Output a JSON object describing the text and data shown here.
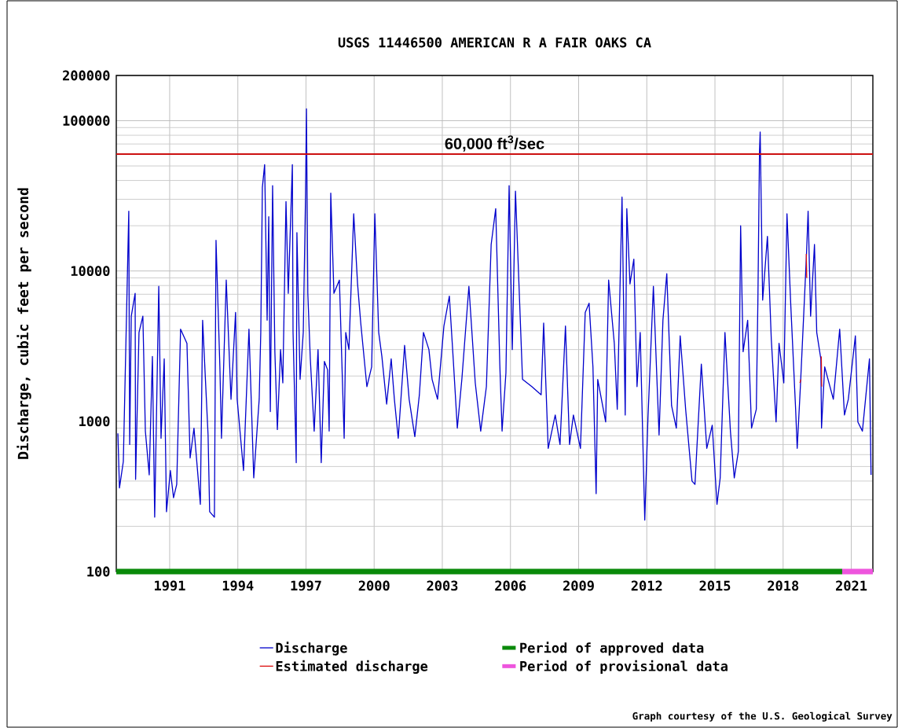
{
  "chart_data": {
    "type": "line",
    "title": "USGS 11446500 AMERICAN R A FAIR OAKS CA",
    "ylabel": "Discharge, cubic feet per second",
    "log": "y",
    "grid": true,
    "legend": "bottom",
    "marker": "none",
    "line_style": "solid",
    "xlim": [
      1988.65,
      2021.95
    ],
    "xticks": [
      1991,
      1994,
      1997,
      2000,
      2003,
      2006,
      2009,
      2012,
      2015,
      2018,
      2021
    ],
    "ylim": [
      100,
      200000
    ],
    "yticks": [
      100,
      1000,
      10000,
      100000,
      200000
    ],
    "series": [
      {
        "name": "Discharge",
        "color": "#0000cc",
        "x": [
          1988.72,
          1988.79,
          1988.96,
          1989.2,
          1989.24,
          1989.31,
          1989.48,
          1989.5,
          1989.65,
          1989.82,
          1989.93,
          1990.1,
          1990.24,
          1990.34,
          1990.52,
          1990.62,
          1990.76,
          1990.86,
          1991.03,
          1991.17,
          1991.31,
          1991.48,
          1991.76,
          1991.9,
          1992.07,
          1992.35,
          1992.45,
          1992.69,
          1992.76,
          1992.97,
          1993.04,
          1993.21,
          1993.28,
          1993.49,
          1993.7,
          1993.9,
          1993.97,
          1994.25,
          1994.49,
          1994.7,
          1994.94,
          1995.01,
          1995.08,
          1995.18,
          1995.29,
          1995.36,
          1995.43,
          1995.53,
          1995.63,
          1995.74,
          1995.88,
          1995.98,
          1996.12,
          1996.22,
          1996.4,
          1996.43,
          1996.57,
          1996.6,
          1996.74,
          1996.88,
          1996.98,
          1997.02,
          1997.08,
          1997.19,
          1997.36,
          1997.53,
          1997.67,
          1997.81,
          1997.95,
          1998.02,
          1998.09,
          1998.23,
          1998.47,
          1998.68,
          1998.75,
          1998.89,
          1999.1,
          1999.27,
          1999.41,
          1999.68,
          1999.89,
          2000.03,
          2000.2,
          2000.34,
          2000.55,
          2000.75,
          2000.89,
          2001.06,
          2001.34,
          2001.54,
          2001.79,
          2001.99,
          2002.17,
          2002.41,
          2002.55,
          2002.79,
          2003.07,
          2003.31,
          2003.48,
          2003.66,
          2003.86,
          2004.17,
          2004.45,
          2004.69,
          2004.94,
          2005.15,
          2005.35,
          2005.53,
          2005.63,
          2005.8,
          2005.94,
          2006.08,
          2006.22,
          2006.53,
          2006.94,
          2007.35,
          2007.46,
          2007.66,
          2007.97,
          2008.18,
          2008.42,
          2008.6,
          2008.77,
          2009.08,
          2009.29,
          2009.46,
          2009.63,
          2009.77,
          2009.84,
          2010.19,
          2010.32,
          2010.57,
          2010.7,
          2010.91,
          2011.05,
          2011.12,
          2011.26,
          2011.43,
          2011.57,
          2011.71,
          2011.91,
          2012.05,
          2012.29,
          2012.54,
          2012.71,
          2012.88,
          2013.09,
          2013.3,
          2013.47,
          2013.71,
          2013.99,
          2014.12,
          2014.4,
          2014.64,
          2014.88,
          2015.09,
          2015.23,
          2015.44,
          2015.68,
          2015.85,
          2016.03,
          2016.13,
          2016.24,
          2016.44,
          2016.61,
          2016.82,
          2016.89,
          2016.96,
          2016.99,
          2017.1,
          2017.31,
          2017.48,
          2017.69,
          2017.82,
          2018.03,
          2018.17,
          2018.34,
          2018.55,
          2018.62,
          2018.76,
          2019.03,
          2019.1,
          2019.21,
          2019.38,
          2019.48,
          2019.66,
          2019.69,
          2019.83,
          2020.21,
          2020.49,
          2020.7,
          2020.87,
          2021.18,
          2021.29,
          2021.49,
          2021.8,
          2021.87
        ],
        "values": [
          830,
          360,
          540,
          25000,
          700,
          5000,
          7100,
          410,
          3900,
          5000,
          860,
          440,
          2700,
          230,
          7900,
          770,
          2600,
          250,
          470,
          310,
          380,
          4100,
          3300,
          570,
          900,
          280,
          4700,
          810,
          250,
          230,
          16000,
          2300,
          770,
          8700,
          1400,
          5300,
          1400,
          470,
          4100,
          420,
          1400,
          3900,
          36000,
          51000,
          4700,
          23000,
          1160,
          37000,
          2900,
          880,
          3000,
          1800,
          29000,
          7100,
          51000,
          3900,
          530,
          18000,
          1900,
          3900,
          32000,
          120000,
          7100,
          2600,
          860,
          3000,
          530,
          2500,
          2200,
          860,
          33000,
          7100,
          8700,
          770,
          3900,
          3000,
          24000,
          8200,
          4500,
          1700,
          2300,
          24000,
          3900,
          2700,
          1300,
          2600,
          1400,
          770,
          3200,
          1400,
          790,
          1500,
          3900,
          3000,
          1900,
          1400,
          4300,
          6800,
          2600,
          900,
          1900,
          7900,
          1800,
          860,
          1700,
          15000,
          26000,
          2400,
          860,
          2100,
          37000,
          3000,
          34000,
          1900,
          1700,
          1500,
          4500,
          660,
          1100,
          700,
          4300,
          700,
          1100,
          660,
          5300,
          6100,
          2300,
          330,
          1900,
          990,
          8700,
          3300,
          1200,
          31000,
          1100,
          26000,
          8200,
          12000,
          1700,
          3900,
          220,
          1040,
          7900,
          810,
          4700,
          9600,
          1270,
          900,
          3700,
          1200,
          400,
          380,
          2400,
          660,
          940,
          280,
          420,
          3900,
          860,
          420,
          630,
          20000,
          2900,
          4700,
          900,
          1200,
          6400,
          62000,
          84000,
          6400,
          17000,
          3500,
          990,
          3300,
          1800,
          24000,
          5800,
          1210,
          660,
          1700,
          13000,
          25000,
          5000,
          15000,
          3900,
          2600,
          900,
          2300,
          1400,
          4100,
          1100,
          1400,
          3700,
          990,
          860,
          2600,
          440
        ]
      },
      {
        "name": "Estimated discharge",
        "color": "#dd1111",
        "x": [
          2018.74,
          2018.78,
          2018.9,
          2019.02,
          2019.04,
          2019.3,
          2019.68,
          2019.7
        ],
        "values": [
          1800,
          1900,
          null,
          13000,
          9000,
          null,
          2700,
          1700
        ]
      },
      {
        "name": "Period of approved data",
        "color": "#0a8a0a",
        "x": [
          1988.65,
          2020.6
        ],
        "values": [
          100,
          100
        ]
      },
      {
        "name": "Period of provisional data",
        "color": "#ee55dd",
        "x": [
          2020.6,
          2021.95
        ],
        "values": [
          100,
          100
        ]
      }
    ],
    "ref_lines": [
      {
        "axis": "y",
        "value": 60000,
        "label": "60,000 ft$^{3}$/sec",
        "color": "#cc1111",
        "line_style": "solid"
      }
    ],
    "annotations": [
      "Graph courtesy of the U.S. Geological Survey"
    ]
  }
}
